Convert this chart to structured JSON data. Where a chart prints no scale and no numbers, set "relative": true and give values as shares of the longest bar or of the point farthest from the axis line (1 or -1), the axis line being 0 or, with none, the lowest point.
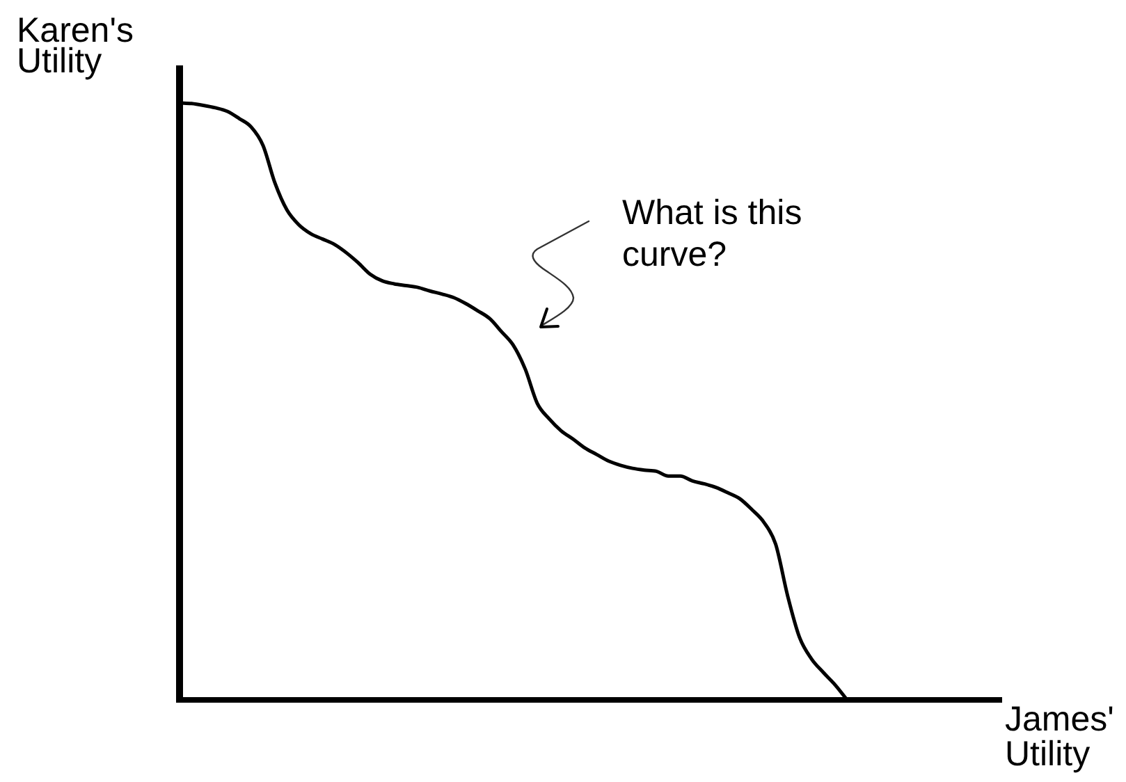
{
  "chart_data": {
    "type": "line",
    "xlabel": "James' Utility",
    "ylabel": "Karen's Utility",
    "annotations": [
      "What is this curve?"
    ],
    "relative": true,
    "color": "#000000",
    "categories": [
      null,
      null,
      null,
      null,
      null,
      null,
      null,
      null,
      null,
      null,
      null,
      null,
      null,
      null,
      null,
      null,
      null,
      null,
      null,
      null,
      null,
      null,
      null,
      null,
      null,
      null,
      null,
      null,
      null,
      null,
      null,
      null,
      null,
      null,
      null,
      null,
      null,
      null,
      null,
      null,
      null,
      null,
      null,
      null,
      null,
      null,
      null,
      null,
      null,
      null,
      null,
      null,
      null,
      null,
      null,
      null,
      null,
      null,
      null,
      null,
      null,
      null,
      null,
      null,
      null,
      null,
      null,
      null,
      null,
      null
    ],
    "values": [
      1,
      0.999,
      0.996,
      0.992,
      0.986,
      0.974,
      0.96,
      0.929,
      0.866,
      0.821,
      0.796,
      0.781,
      0.772,
      0.763,
      0.749,
      0.732,
      0.713,
      0.702,
      0.697,
      0.694,
      0.691,
      0.685,
      0.68,
      0.674,
      0.664,
      0.652,
      0.639,
      0.617,
      0.594,
      0.554,
      0.497,
      0.471,
      0.451,
      0.437,
      0.422,
      0.411,
      0.4,
      0.393,
      0.388,
      0.385,
      0.383,
      0.375,
      0.375,
      0.367,
      0.362,
      0.356,
      0.347,
      0.337,
      0.319,
      0.298,
      0.261,
      0.175,
      0.105,
      0.069,
      0.046,
      0.025,
      0,
      null,
      null,
      null,
      null,
      null,
      null,
      null,
      null,
      null,
      null,
      null,
      null,
      null
    ]
  }
}
